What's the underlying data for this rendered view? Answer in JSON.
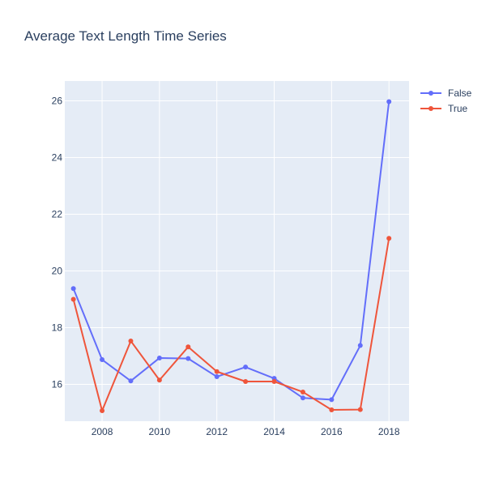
{
  "chart_data": {
    "type": "line",
    "title": "Average Text Length Time Series",
    "xlabel": "",
    "ylabel": "",
    "x": [
      2007,
      2008,
      2009,
      2010,
      2011,
      2012,
      2013,
      2014,
      2015,
      2016,
      2017,
      2018
    ],
    "xlim": [
      2006.7,
      2018.7
    ],
    "ylim": [
      14.7,
      26.7
    ],
    "x_ticks": [
      2008,
      2010,
      2012,
      2014,
      2016,
      2018
    ],
    "y_ticks": [
      16,
      18,
      20,
      22,
      24,
      26
    ],
    "grid": true,
    "legend_position": "top-right",
    "background": "#e5ecf6",
    "series": [
      {
        "name": "False",
        "color": "#636efa",
        "values": [
          19.38,
          16.87,
          16.12,
          16.93,
          16.91,
          16.27,
          16.61,
          16.21,
          15.52,
          15.46,
          17.37,
          25.97
        ]
      },
      {
        "name": "True",
        "color": "#ef553b",
        "values": [
          19.0,
          15.07,
          17.53,
          16.15,
          17.32,
          16.45,
          16.1,
          16.1,
          15.73,
          15.1,
          15.11,
          21.15
        ]
      }
    ]
  }
}
